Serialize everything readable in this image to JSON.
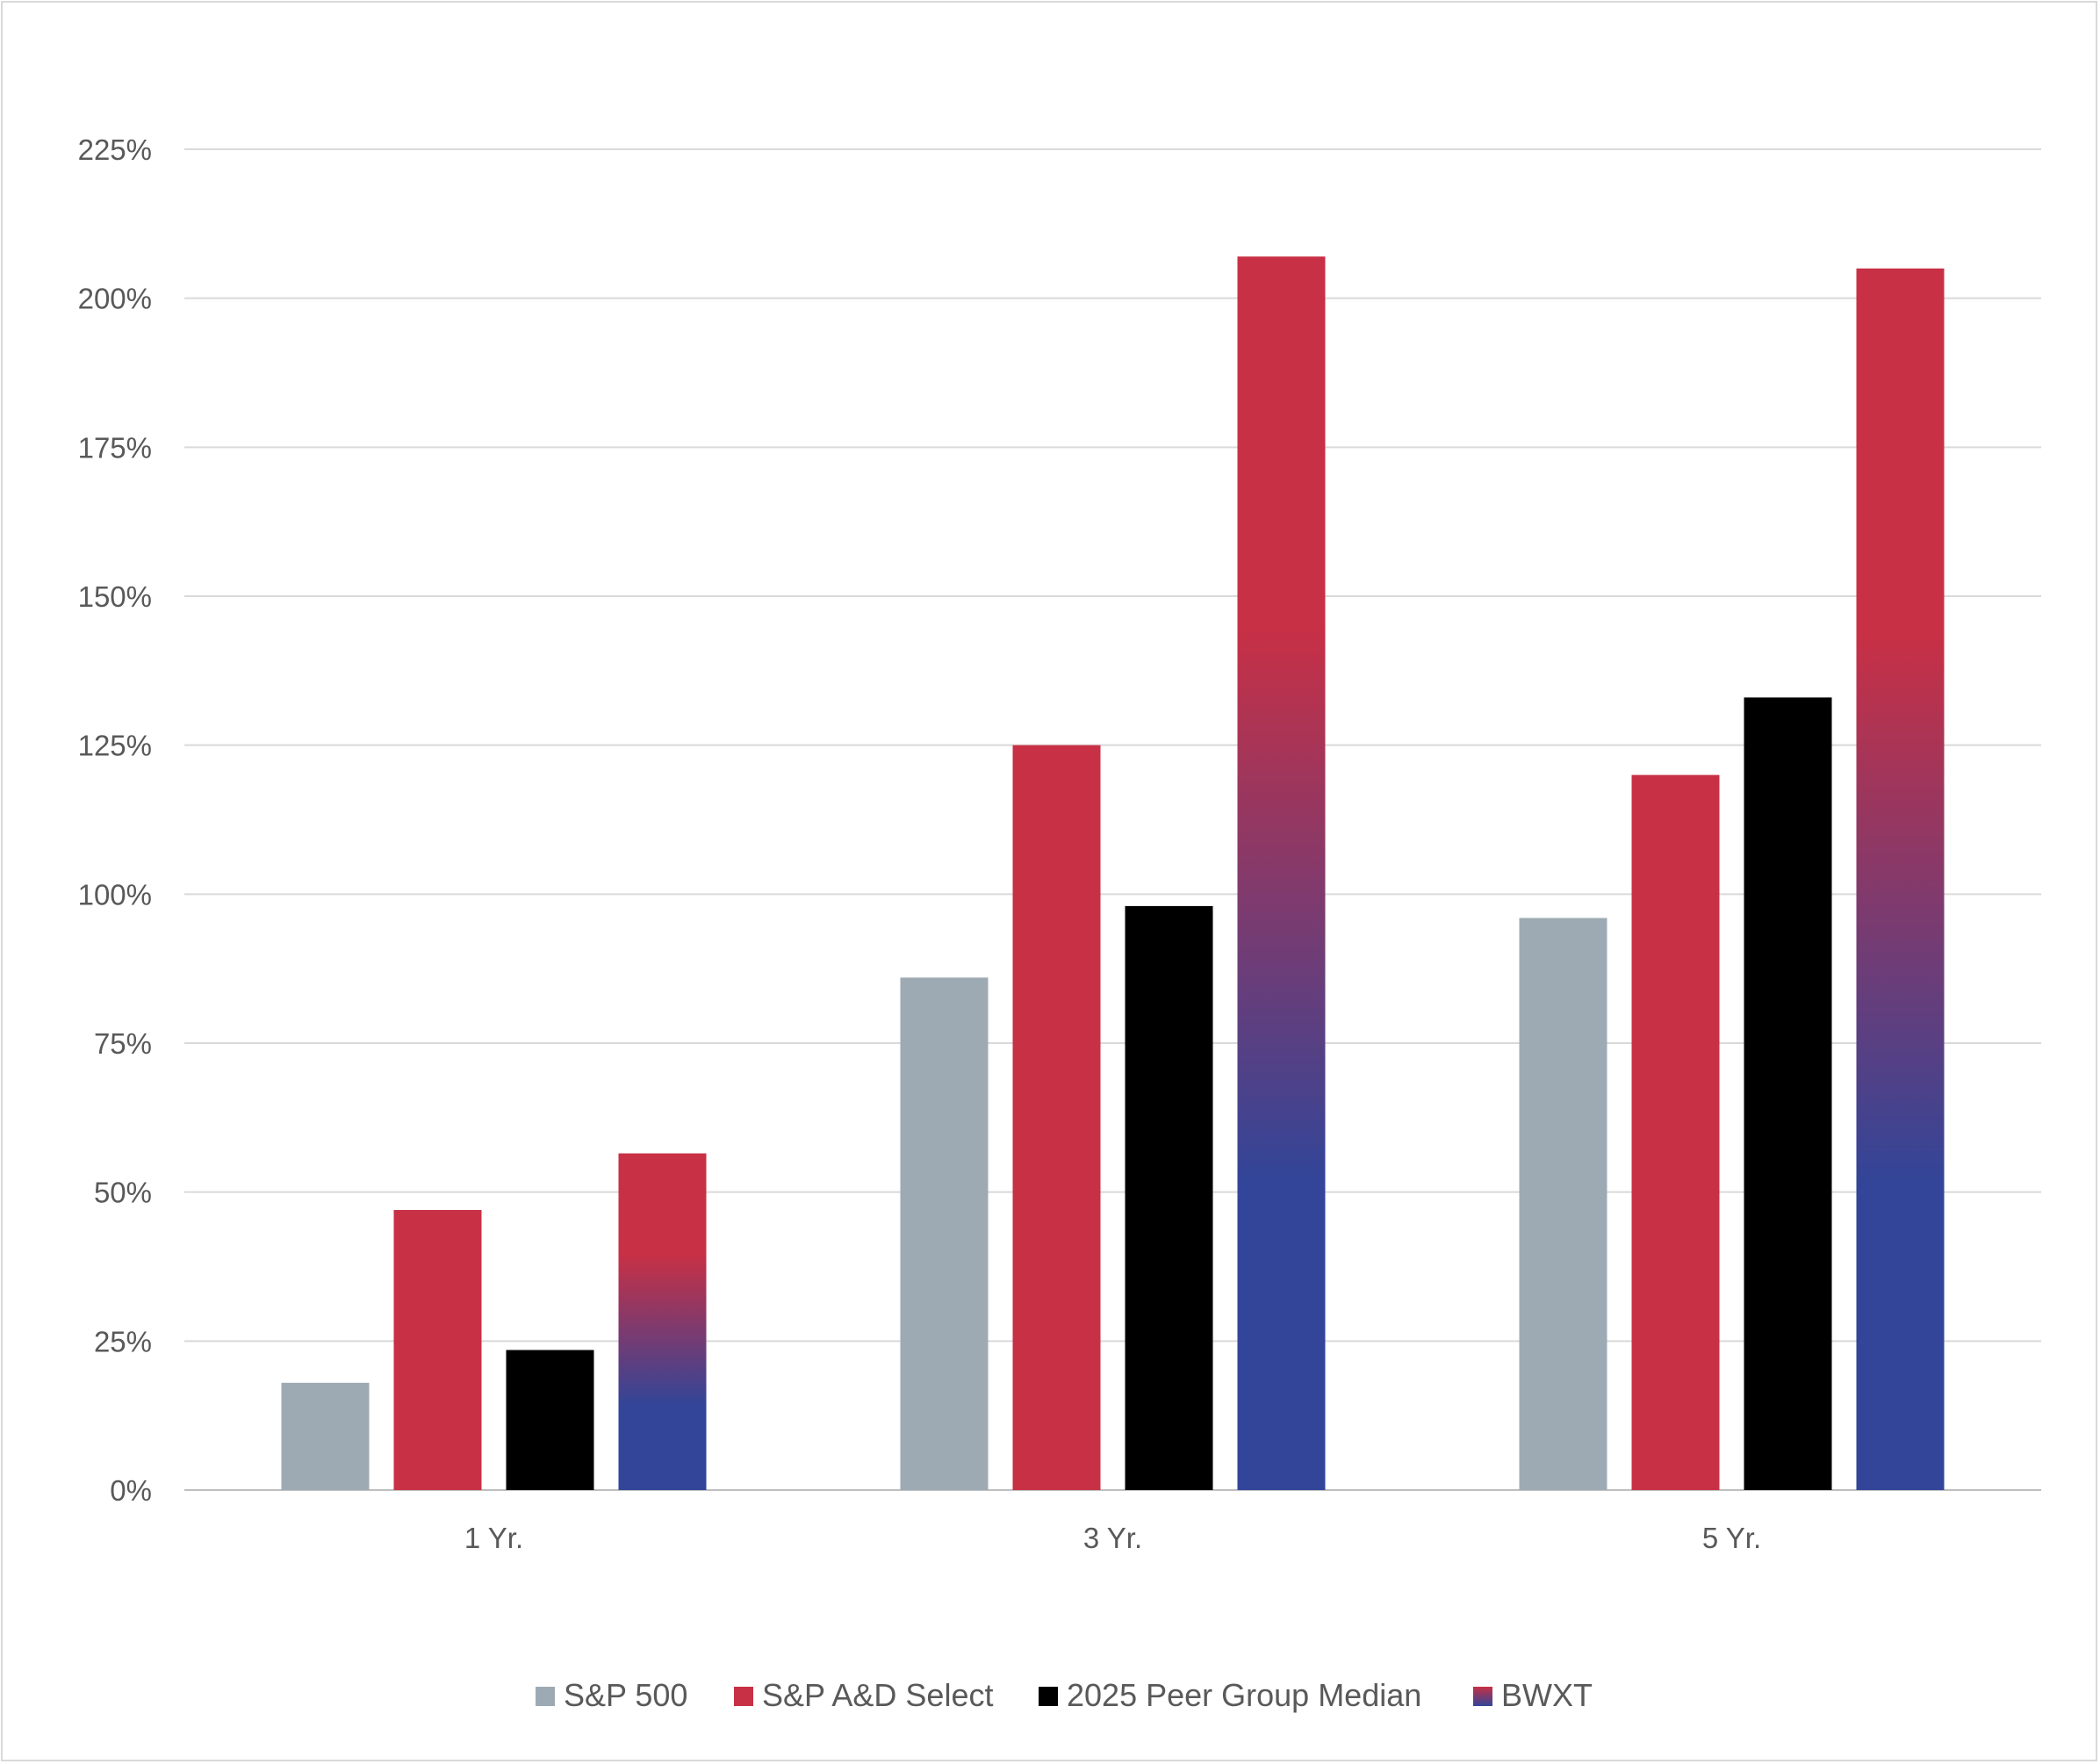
{
  "chart_data": {
    "type": "bar",
    "title": "",
    "xlabel": "",
    "ylabel": "",
    "categories": [
      "1 Yr.",
      "3 Yr.",
      "5 Yr."
    ],
    "ylim": [
      0,
      225
    ],
    "yticks": [
      0,
      25,
      50,
      75,
      100,
      125,
      150,
      175,
      200,
      225
    ],
    "ytick_labels": [
      "0%",
      "25%",
      "50%",
      "75%",
      "100%",
      "125%",
      "150%",
      "175%",
      "200%",
      "225%"
    ],
    "grid": true,
    "legend_position": "bottom",
    "series": [
      {
        "name": "S&P 500",
        "values": [
          18,
          86,
          96
        ],
        "color": "#9eaab3"
      },
      {
        "name": "S&P A&D Select",
        "values": [
          47,
          125,
          120
        ],
        "color": "#c83045"
      },
      {
        "name": "2025 Peer Group Median",
        "values": [
          23.5,
          98,
          133
        ],
        "color": "#000000"
      },
      {
        "name": "BWXT",
        "values": [
          56.5,
          207,
          205
        ],
        "color_top": "#c83045",
        "color_bottom": "#324598",
        "gradient": true
      }
    ]
  }
}
